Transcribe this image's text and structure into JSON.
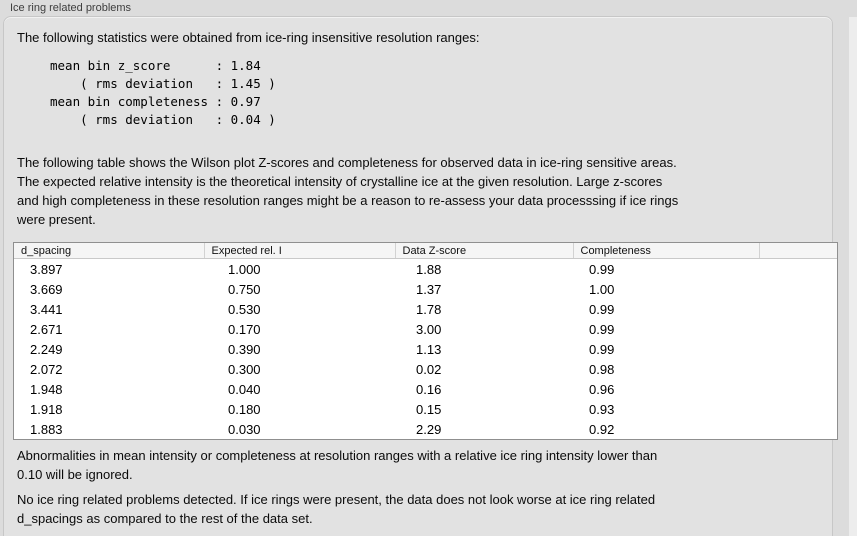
{
  "section": {
    "title": "Ice ring related problems"
  },
  "colors": {
    "page_bg": "#dcdcdc",
    "panel_bg": "#e2e2e2",
    "panel_border": "#c7c7c7",
    "table_bg": "#ffffff",
    "table_border": "#8f8f8f",
    "table_header_bg": "#f5f5f5"
  },
  "intro": "The following statistics were obtained from ice-ring insensitive resolution ranges:",
  "stats_block": "mean bin z_score      : 1.84\n    ( rms deviation   : 1.45 )\nmean bin completeness : 0.97\n    ( rms deviation   : 0.04 )",
  "stats": {
    "mean_bin_z_score": "1.84",
    "z_score_rms_deviation": "1.45",
    "mean_bin_completeness": "0.97",
    "completeness_rms_deviation": "0.04"
  },
  "table_intro": "The following table shows the Wilson plot Z-scores and completeness for observed data in ice-ring sensitive areas.\nThe expected relative intensity is the theoretical intensity of crystalline ice at the given resolution. Large z-scores\nand high completeness in these resolution ranges might be a reason to re-assess your data processsing if ice rings\nwere present.",
  "table": {
    "columns": [
      "d_spacing",
      "Expected rel. I",
      "Data Z-score",
      "Completeness"
    ],
    "rows": [
      [
        "3.897",
        "1.000",
        "1.88",
        "0.99"
      ],
      [
        "3.669",
        "0.750",
        "1.37",
        "1.00"
      ],
      [
        "3.441",
        "0.530",
        "1.78",
        "0.99"
      ],
      [
        "2.671",
        "0.170",
        "3.00",
        "0.99"
      ],
      [
        "2.249",
        "0.390",
        "1.13",
        "0.99"
      ],
      [
        "2.072",
        "0.300",
        "0.02",
        "0.98"
      ],
      [
        "1.948",
        "0.040",
        "0.16",
        "0.96"
      ],
      [
        "1.918",
        "0.180",
        "0.15",
        "0.93"
      ],
      [
        "1.883",
        "0.030",
        "2.29",
        "0.92"
      ]
    ]
  },
  "note_ignore": "Abnormalities in mean intensity or completeness at resolution ranges with a relative ice ring intensity lower than\n0.10 will be ignored.",
  "conclusion": "No ice ring related problems detected. If ice rings were present, the data does not look worse at ice ring related\nd_spacings as compared to the rest of the data set."
}
